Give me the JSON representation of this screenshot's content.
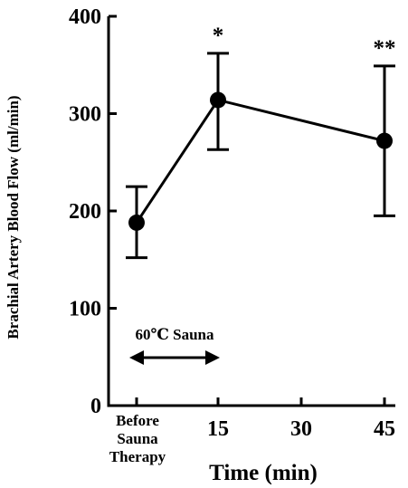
{
  "chart_data": {
    "type": "line",
    "xlabel": "Time (min)",
    "ylabel": "Brachial Artery Blood Flow (ml/min)",
    "ylim": [
      0,
      400
    ],
    "yticks": [
      0,
      100,
      200,
      300,
      400
    ],
    "x_tick_labels": [
      "15",
      "30",
      "45"
    ],
    "baseline_label": [
      "Before",
      "Sauna",
      "Therapy"
    ],
    "grid": false,
    "legend": "none",
    "series": [
      {
        "points": [
          {
            "x": "Before Sauna Therapy",
            "y": 188,
            "err_low": 152,
            "err_high": 225,
            "sig": ""
          },
          {
            "x": "15",
            "y": 314,
            "err_low": 263,
            "err_high": 362,
            "sig": "*"
          },
          {
            "x": "45",
            "y": 272,
            "err_low": 195,
            "err_high": 349,
            "sig": "**"
          }
        ]
      }
    ],
    "annotation": {
      "text": "60℃ Sauna",
      "span_from": "Before Sauna Therapy",
      "span_to": "15"
    }
  }
}
